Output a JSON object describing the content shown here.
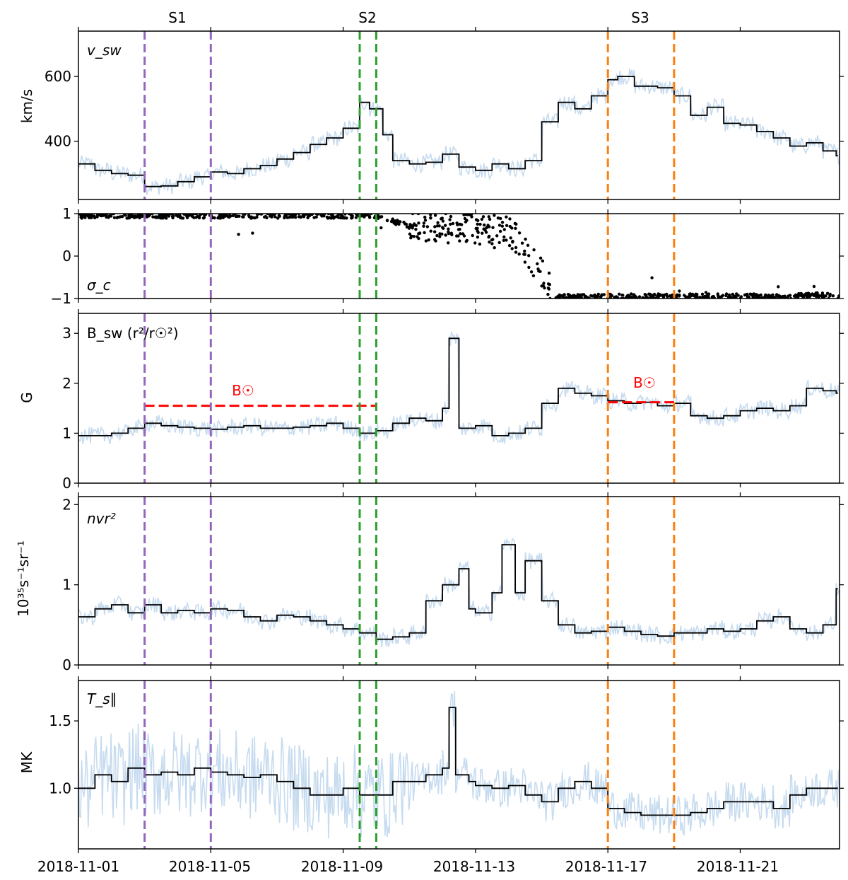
{
  "chart_data": {
    "type": "line",
    "x_axis": {
      "start": "2018-11-01",
      "end": "2018-11-24",
      "xlim_days": [
        0,
        23
      ],
      "ticks": [
        {
          "day": 0,
          "label": "2018-11-01"
        },
        {
          "day": 4,
          "label": "2018-11-05"
        },
        {
          "day": 8,
          "label": "2018-11-09"
        },
        {
          "day": 12,
          "label": "2018-11-13"
        },
        {
          "day": 16,
          "label": "2018-11-17"
        },
        {
          "day": 20,
          "label": "2018-11-21"
        }
      ]
    },
    "intervals": [
      {
        "label": "S1",
        "start_day": 2.0,
        "end_day": 4.0,
        "color": "#9467bd"
      },
      {
        "label": "S2",
        "start_day": 8.5,
        "end_day": 9.0,
        "color": "#2ca02c"
      },
      {
        "label": "S3",
        "start_day": 16.0,
        "end_day": 18.0,
        "color": "#ff7f0e"
      }
    ],
    "colors": {
      "raw": "#c6dbef",
      "binned": "#000000",
      "reference": "#ff0000"
    },
    "panels": [
      {
        "id": "vsw",
        "label": "v_sw",
        "ylabel": "km/s",
        "ylim": [
          220,
          740
        ],
        "yticks": [
          400,
          600
        ],
        "series": [
          {
            "name": "binned",
            "style": "step",
            "points": [
              [
                0,
                330
              ],
              [
                0.5,
                310
              ],
              [
                1,
                300
              ],
              [
                1.5,
                295
              ],
              [
                2,
                260
              ],
              [
                2.5,
                262
              ],
              [
                3,
                275
              ],
              [
                3.5,
                290
              ],
              [
                4,
                305
              ],
              [
                4.5,
                300
              ],
              [
                5,
                315
              ],
              [
                5.5,
                325
              ],
              [
                6,
                345
              ],
              [
                6.5,
                365
              ],
              [
                7,
                390
              ],
              [
                7.5,
                410
              ],
              [
                8,
                440
              ],
              [
                8.5,
                520
              ],
              [
                8.8,
                500
              ],
              [
                9.2,
                420
              ],
              [
                9.5,
                340
              ],
              [
                10,
                330
              ],
              [
                10.5,
                335
              ],
              [
                11,
                360
              ],
              [
                11.5,
                320
              ],
              [
                12,
                310
              ],
              [
                12.5,
                330
              ],
              [
                13,
                315
              ],
              [
                13.5,
                340
              ],
              [
                14,
                460
              ],
              [
                14.5,
                520
              ],
              [
                15,
                500
              ],
              [
                15.5,
                540
              ],
              [
                16,
                590
              ],
              [
                16.3,
                600
              ],
              [
                16.8,
                570
              ],
              [
                17.5,
                565
              ],
              [
                18,
                540
              ],
              [
                18.5,
                480
              ],
              [
                19,
                505
              ],
              [
                19.5,
                455
              ],
              [
                20,
                450
              ],
              [
                20.5,
                430
              ],
              [
                21,
                410
              ],
              [
                21.5,
                385
              ],
              [
                22,
                395
              ],
              [
                22.5,
                370
              ],
              [
                22.9,
                355
              ]
            ]
          }
        ]
      },
      {
        "id": "sigma",
        "label": "σ_c",
        "ylabel": "",
        "ylim": [
          -1,
          1
        ],
        "yticks": [
          -1,
          0,
          1
        ],
        "series": [
          {
            "name": "scatter",
            "style": "scatter",
            "density_profile": [
              [
                0,
                0.95
              ],
              [
                9,
                0.95
              ],
              [
                10,
                0.7
              ],
              [
                13,
                0.6
              ],
              [
                13.5,
                0.2
              ],
              [
                14,
                -0.4
              ],
              [
                14.4,
                -0.95
              ],
              [
                21.5,
                -0.95
              ],
              [
                23,
                -0.9
              ]
            ]
          }
        ]
      },
      {
        "id": "bsw",
        "label": "B_sw (r²/r☉²)",
        "ylabel": "G",
        "ylim": [
          0,
          3.4
        ],
        "yticks": [
          0,
          1,
          2,
          3
        ],
        "reference_lines": [
          {
            "label": "B☉",
            "start_day": 2.0,
            "end_day": 9.0,
            "value": 1.55
          },
          {
            "label": "B☉",
            "start_day": 16.0,
            "end_day": 18.0,
            "value": 1.62
          }
        ],
        "series": [
          {
            "name": "binned",
            "style": "step",
            "points": [
              [
                0,
                0.95
              ],
              [
                0.5,
                0.95
              ],
              [
                1,
                1.0
              ],
              [
                1.5,
                1.1
              ],
              [
                2,
                1.2
              ],
              [
                2.5,
                1.15
              ],
              [
                3,
                1.12
              ],
              [
                3.5,
                1.1
              ],
              [
                4,
                1.08
              ],
              [
                4.5,
                1.12
              ],
              [
                5,
                1.15
              ],
              [
                5.5,
                1.1
              ],
              [
                6,
                1.1
              ],
              [
                6.5,
                1.12
              ],
              [
                7,
                1.15
              ],
              [
                7.5,
                1.2
              ],
              [
                8,
                1.1
              ],
              [
                8.5,
                1.0
              ],
              [
                9,
                1.05
              ],
              [
                9.5,
                1.2
              ],
              [
                10,
                1.3
              ],
              [
                10.5,
                1.25
              ],
              [
                11,
                1.5
              ],
              [
                11.2,
                2.9
              ],
              [
                11.5,
                1.1
              ],
              [
                12,
                1.15
              ],
              [
                12.5,
                0.95
              ],
              [
                13,
                1.0
              ],
              [
                13.5,
                1.1
              ],
              [
                14,
                1.6
              ],
              [
                14.5,
                1.9
              ],
              [
                15,
                1.8
              ],
              [
                15.5,
                1.75
              ],
              [
                16,
                1.65
              ],
              [
                16.5,
                1.6
              ],
              [
                17,
                1.62
              ],
              [
                17.5,
                1.55
              ],
              [
                18,
                1.6
              ],
              [
                18.5,
                1.35
              ],
              [
                19,
                1.3
              ],
              [
                19.5,
                1.35
              ],
              [
                20,
                1.45
              ],
              [
                20.5,
                1.5
              ],
              [
                21,
                1.45
              ],
              [
                21.5,
                1.55
              ],
              [
                22,
                1.9
              ],
              [
                22.5,
                1.85
              ],
              [
                22.9,
                1.8
              ]
            ]
          }
        ]
      },
      {
        "id": "nvr2",
        "label": "nvr²",
        "ylabel": "10³⁵s⁻¹sr⁻¹",
        "ylim": [
          0,
          2.1
        ],
        "yticks": [
          0,
          1,
          2
        ],
        "series": [
          {
            "name": "binned",
            "style": "step",
            "points": [
              [
                0,
                0.6
              ],
              [
                0.5,
                0.7
              ],
              [
                1,
                0.75
              ],
              [
                1.5,
                0.65
              ],
              [
                2,
                0.75
              ],
              [
                2.5,
                0.65
              ],
              [
                3,
                0.68
              ],
              [
                3.5,
                0.65
              ],
              [
                4,
                0.7
              ],
              [
                4.5,
                0.68
              ],
              [
                5,
                0.6
              ],
              [
                5.5,
                0.55
              ],
              [
                6,
                0.62
              ],
              [
                6.5,
                0.6
              ],
              [
                7,
                0.55
              ],
              [
                7.5,
                0.5
              ],
              [
                8,
                0.45
              ],
              [
                8.5,
                0.4
              ],
              [
                9,
                0.32
              ],
              [
                9.5,
                0.35
              ],
              [
                10,
                0.4
              ],
              [
                10.5,
                0.8
              ],
              [
                11,
                1.0
              ],
              [
                11.5,
                1.2
              ],
              [
                11.8,
                0.7
              ],
              [
                12,
                0.65
              ],
              [
                12.5,
                0.9
              ],
              [
                12.8,
                1.5
              ],
              [
                13.2,
                0.9
              ],
              [
                13.5,
                1.3
              ],
              [
                14,
                0.8
              ],
              [
                14.5,
                0.5
              ],
              [
                15,
                0.4
              ],
              [
                15.5,
                0.42
              ],
              [
                16,
                0.47
              ],
              [
                16.5,
                0.42
              ],
              [
                17,
                0.38
              ],
              [
                17.5,
                0.36
              ],
              [
                18,
                0.4
              ],
              [
                18.5,
                0.4
              ],
              [
                19,
                0.45
              ],
              [
                19.5,
                0.42
              ],
              [
                20,
                0.45
              ],
              [
                20.5,
                0.55
              ],
              [
                21,
                0.6
              ],
              [
                21.5,
                0.45
              ],
              [
                22,
                0.4
              ],
              [
                22.5,
                0.5
              ],
              [
                22.9,
                0.95
              ]
            ]
          }
        ]
      },
      {
        "id": "tpar",
        "label": "T_s∥",
        "ylabel": "MK",
        "ylim": [
          0.55,
          1.8
        ],
        "yticks": [
          1.0,
          1.5
        ],
        "series": [
          {
            "name": "binned",
            "style": "step",
            "points": [
              [
                0,
                1.0
              ],
              [
                0.5,
                1.1
              ],
              [
                1,
                1.05
              ],
              [
                1.5,
                1.15
              ],
              [
                2,
                1.1
              ],
              [
                2.5,
                1.12
              ],
              [
                3,
                1.1
              ],
              [
                3.5,
                1.15
              ],
              [
                4,
                1.12
              ],
              [
                4.5,
                1.1
              ],
              [
                5,
                1.08
              ],
              [
                5.5,
                1.1
              ],
              [
                6,
                1.05
              ],
              [
                6.5,
                1.0
              ],
              [
                7,
                0.95
              ],
              [
                7.5,
                0.95
              ],
              [
                8,
                1.0
              ],
              [
                8.5,
                0.95
              ],
              [
                9,
                0.95
              ],
              [
                9.5,
                1.05
              ],
              [
                10,
                1.05
              ],
              [
                10.5,
                1.1
              ],
              [
                11,
                1.15
              ],
              [
                11.2,
                1.6
              ],
              [
                11.4,
                1.1
              ],
              [
                11.8,
                1.05
              ],
              [
                12,
                1.02
              ],
              [
                12.5,
                1.0
              ],
              [
                13,
                1.02
              ],
              [
                13.5,
                0.95
              ],
              [
                14,
                0.9
              ],
              [
                14.5,
                1.0
              ],
              [
                15,
                1.05
              ],
              [
                15.5,
                1.0
              ],
              [
                16,
                0.85
              ],
              [
                16.5,
                0.82
              ],
              [
                17,
                0.8
              ],
              [
                17.5,
                0.8
              ],
              [
                18,
                0.8
              ],
              [
                18.5,
                0.82
              ],
              [
                19,
                0.85
              ],
              [
                19.5,
                0.9
              ],
              [
                20,
                0.9
              ],
              [
                20.5,
                0.9
              ],
              [
                21,
                0.85
              ],
              [
                21.5,
                0.95
              ],
              [
                22,
                1.0
              ],
              [
                22.5,
                1.0
              ],
              [
                22.9,
                1.0
              ]
            ]
          }
        ]
      }
    ]
  }
}
